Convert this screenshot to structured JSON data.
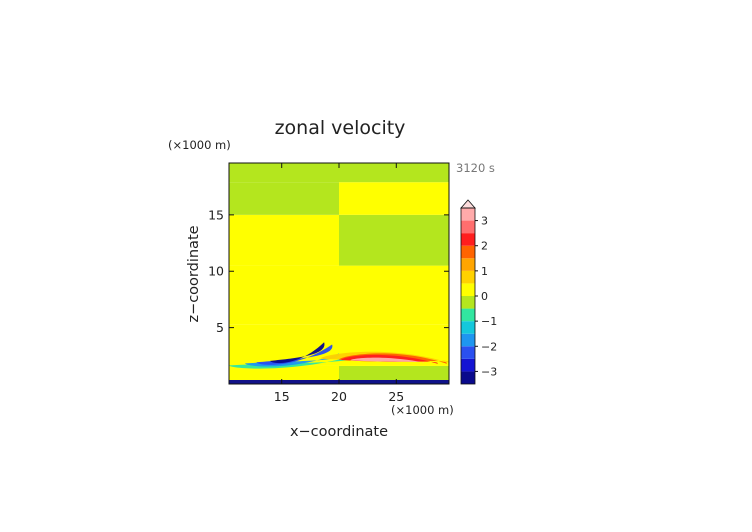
{
  "chart_data": {
    "type": "heatmap",
    "title": "zonal velocity",
    "time_label": "3120 s",
    "xlabel": "x−coordinate",
    "ylabel": "z−coordinate",
    "x_unit_label": "(×1000 m)",
    "y_unit_label": "(×1000 m)",
    "xlim": [
      10.4,
      29.6
    ],
    "ylim": [
      0,
      19.6
    ],
    "x_ticks": [
      15,
      20,
      25
    ],
    "x_tick_labels": [
      "15",
      "20",
      "25"
    ],
    "y_ticks": [
      5,
      10,
      15
    ],
    "y_tick_labels": [
      "5",
      "10",
      "15"
    ],
    "colorbar": {
      "levels": [
        -3.5,
        -3,
        -2.5,
        -2,
        -1.5,
        -1,
        -0.5,
        0,
        0.5,
        1,
        1.5,
        2,
        2.5,
        3,
        3.5
      ],
      "colors": [
        "#0a0a8c",
        "#1414d2",
        "#2a50f0",
        "#1e96f0",
        "#14c8dc",
        "#32e6a0",
        "#b4e61e",
        "#ffff00",
        "#ffd200",
        "#ffa500",
        "#ff6400",
        "#ff1e1e",
        "#ff6e6e",
        "#ffaaaa"
      ],
      "extend_color": "#fcdcdc",
      "tick_values": [
        -3,
        -2,
        -1,
        0,
        1,
        2,
        3
      ],
      "tick_labels": [
        "−3",
        "−2",
        "−1",
        "0",
        "1",
        "2",
        "3"
      ]
    },
    "field": {
      "bands": [
        {
          "z": [
            0,
            1.6
          ],
          "left": 0.4,
          "right": -0.4
        },
        {
          "z": [
            1.6,
            5.3
          ],
          "left": 0.2,
          "right": 0.2
        },
        {
          "z": [
            5.3,
            10.5
          ],
          "left": 0.2,
          "right": 0.2
        },
        {
          "z": [
            10.5,
            15.0
          ],
          "left": 0.2,
          "right": -0.2
        },
        {
          "z": [
            15.0,
            17.9
          ],
          "left": -0.2,
          "right": 0.2
        },
        {
          "z": [
            17.9,
            19.6
          ],
          "left": -0.2,
          "right": -0.2
        }
      ],
      "features": [
        {
          "x": [
            10.4,
            21.6
          ],
          "z": [
            0.9,
            1.35,
            1.95,
            2.6
          ],
          "value": -0.8
        },
        {
          "x": [
            11.8,
            20.0
          ],
          "z": [
            1.1,
            1.55,
            2.1,
            2.7
          ],
          "value": -1.6
        },
        {
          "x": [
            12.8,
            19.4
          ],
          "z": [
            1.2,
            1.65,
            2.2,
            3.5
          ],
          "value": -2.4
        },
        {
          "x": [
            14.0,
            18.7
          ],
          "z": [
            1.4,
            1.8,
            2.3,
            3.7
          ],
          "value": -3.2
        },
        {
          "x": [
            18.4,
            29.6
          ],
          "z": [
            3.6,
            2.6,
            1.9,
            1.1
          ],
          "value": 0.8
        },
        {
          "x": [
            20.0,
            29.4
          ],
          "z": [
            3.4,
            2.5,
            1.8,
            1.2
          ],
          "value": 1.6
        },
        {
          "x": [
            20.2,
            28.6
          ],
          "z": [
            3.1,
            2.45,
            1.8,
            1.25
          ],
          "value": 2.3
        },
        {
          "x": [
            21.0,
            27.4
          ],
          "z": [
            2.6,
            2.3,
            1.9,
            1.4
          ],
          "value": 3.2
        },
        {
          "x": [
            10.4,
            29.6
          ],
          "z": [
            0.05,
            0.05,
            0.05,
            0.05
          ],
          "value": -3.2
        }
      ]
    }
  }
}
